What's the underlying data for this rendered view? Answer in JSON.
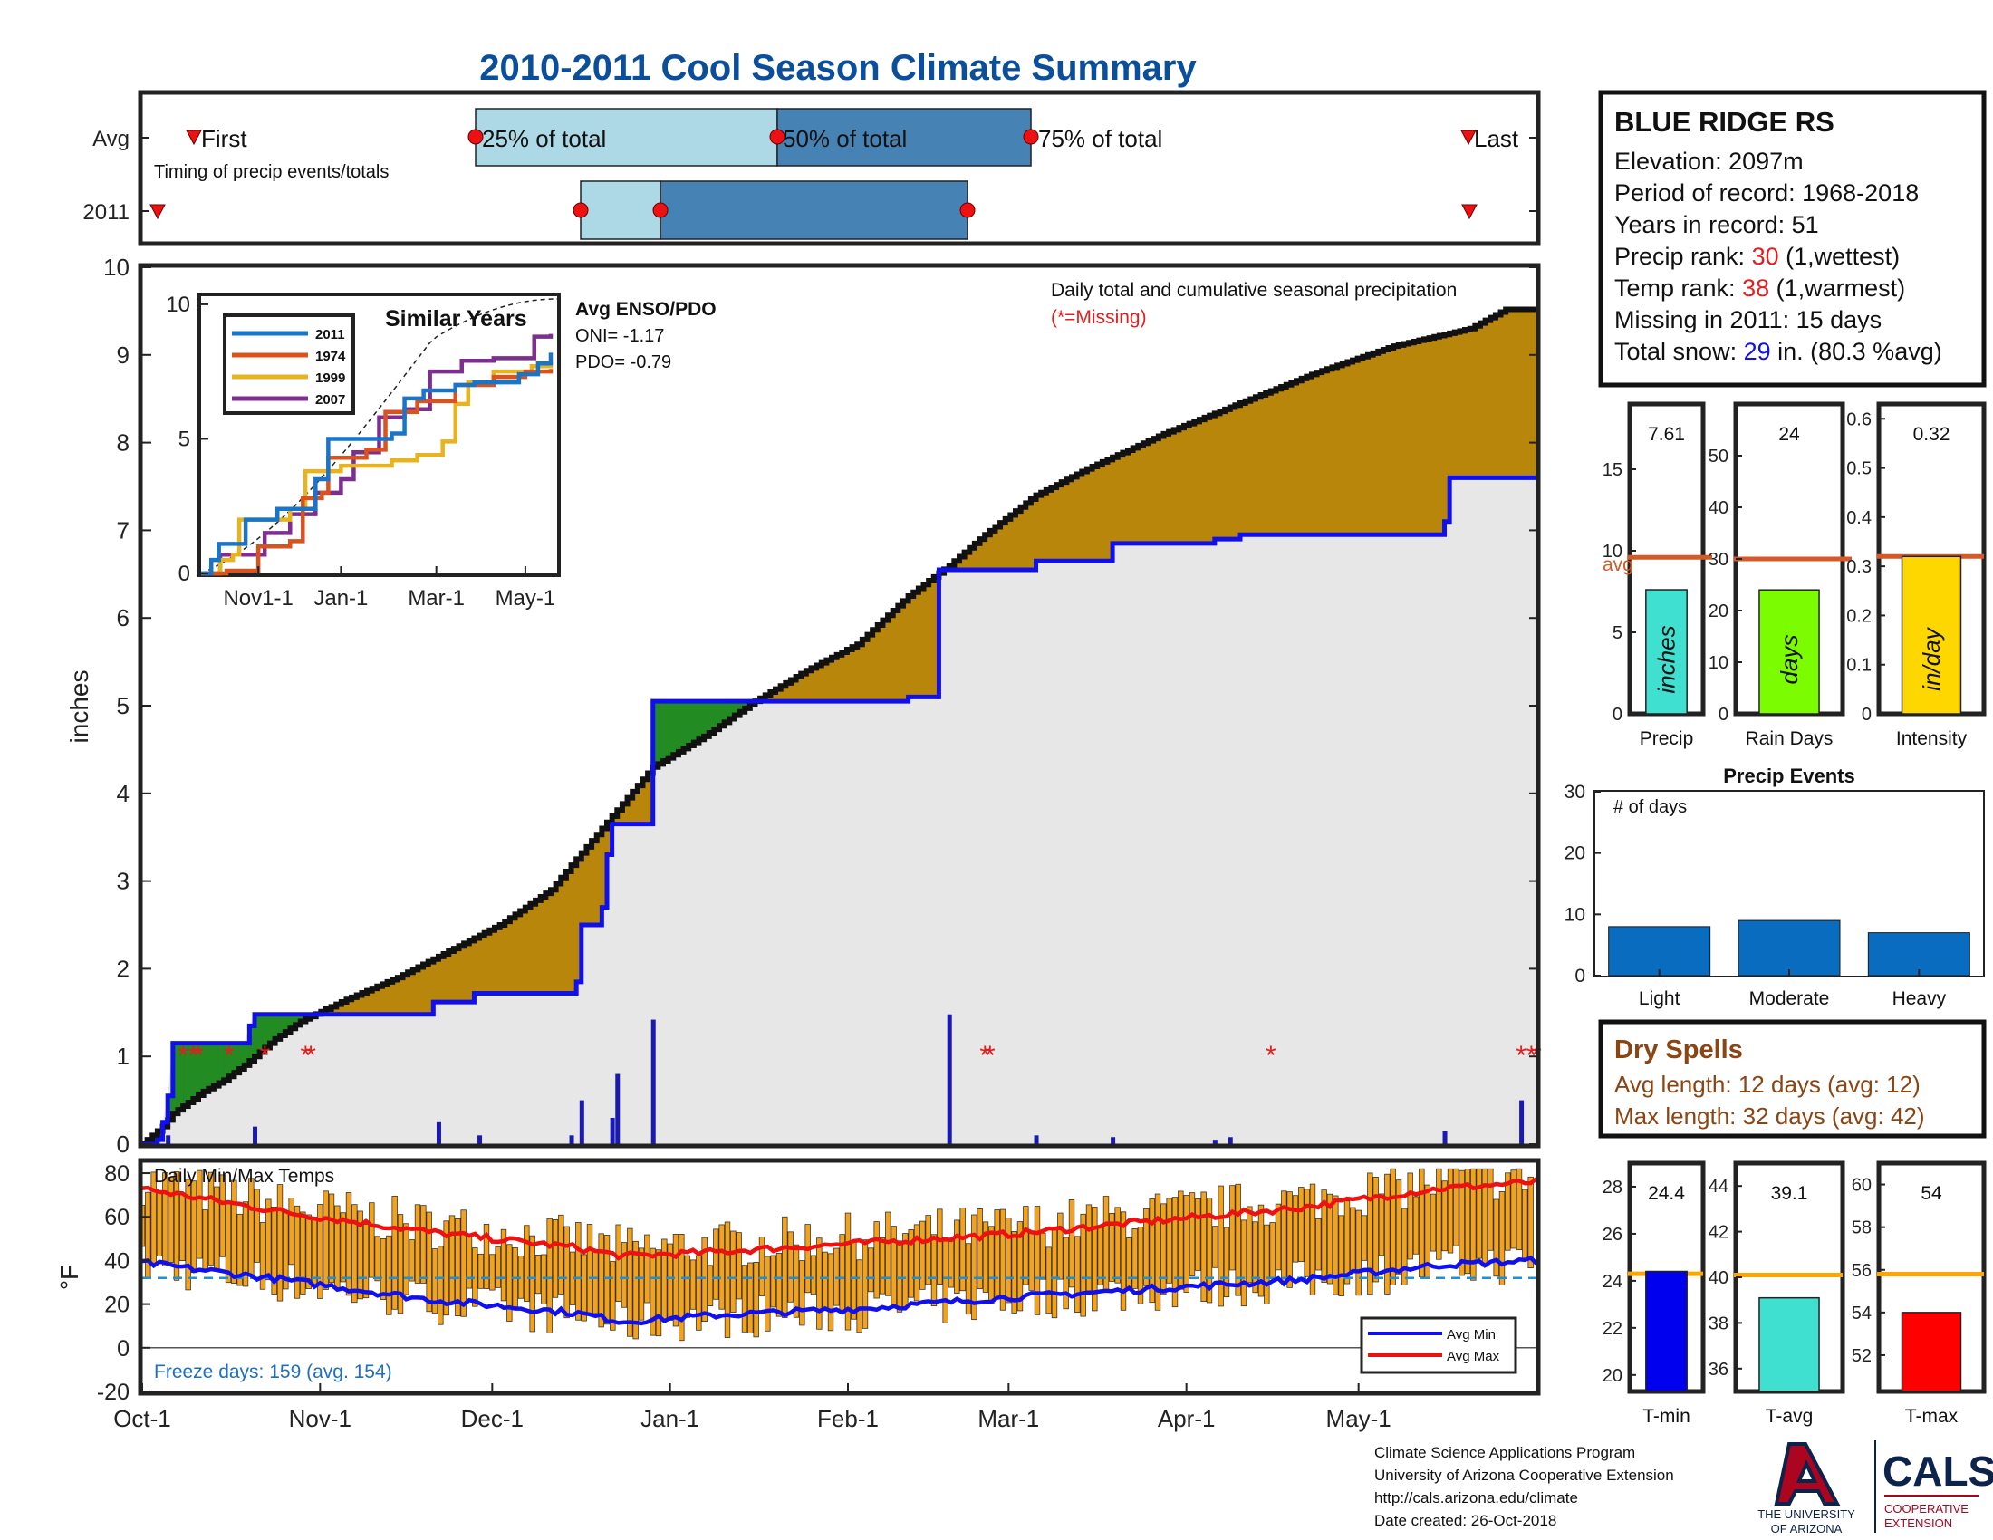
{
  "page": {
    "title": "2010-2011 Cool Season Climate Summary",
    "title_color": "#0b4f9c"
  },
  "timing": {
    "row_labels": [
      "Avg",
      "2011"
    ],
    "first_label": "First",
    "last_label": "Last",
    "p25_label": "25% of total",
    "p50_label": "50% of total",
    "p75_label": "75% of total",
    "caption": "Timing of precip events/totals"
  },
  "station": {
    "name": "BLUE RIDGE RS",
    "elevation": "Elevation: 2097m",
    "period": "Period of record: 1968-2018",
    "years": "Years in record: 51",
    "precip_rank_label": "Precip rank: ",
    "precip_rank_value": "30",
    "precip_rank_suffix": " (1,wettest)",
    "temp_rank_label": "Temp rank: ",
    "temp_rank_value": "38",
    "temp_rank_suffix": " (1,warmest)",
    "missing": "Missing in 2011: 15 days",
    "snow_label": "Total snow: ",
    "snow_value": "29",
    "snow_suffix": " in. (80.3 %avg)"
  },
  "main": {
    "ylabel": "inches",
    "title": "Daily total and cumulative seasonal precipitation",
    "missing_note": "(*=Missing)",
    "yticks": [
      "0",
      "1",
      "2",
      "3",
      "4",
      "5",
      "6",
      "7",
      "8",
      "9",
      "10"
    ],
    "xticks": [
      "Oct-1",
      "Nov-1",
      "Dec-1",
      "Jan-1",
      "Feb-1",
      "Mar-1",
      "Apr-1",
      "May-1"
    ]
  },
  "inset": {
    "title": "Similar Years",
    "yticks": [
      "0",
      "5",
      "10"
    ],
    "xticks": [
      "Nov1-1",
      "Jan-1",
      "Mar-1",
      "May-1"
    ],
    "legend": [
      "2011",
      "1974",
      "1999",
      "2007"
    ],
    "enso_title": "Avg ENSO/PDO",
    "oni": "ONI= -1.17",
    "pdo": "PDO= -0.79"
  },
  "temps": {
    "title": "Daily Min/Max Temps",
    "ylabel": "°F",
    "yticks": [
      "-20",
      "0",
      "20",
      "40",
      "60",
      "80"
    ],
    "freeze": "Freeze days: 159 (avg. 154)",
    "legend_min": "Avg Min",
    "legend_max": "Avg Max"
  },
  "bars_top": {
    "precip": {
      "value_label": "7.61",
      "unit": "inches",
      "xlabel": "Precip",
      "yticks": [
        "0",
        "5",
        "10",
        "15"
      ],
      "avg_label": "avg"
    },
    "raindays": {
      "value_label": "24",
      "unit": "days",
      "xlabel": "Rain Days",
      "yticks": [
        "0",
        "10",
        "20",
        "30",
        "40",
        "50"
      ]
    },
    "intensity": {
      "value_label": "0.32",
      "unit": "in/day",
      "xlabel": "Intensity",
      "yticks": [
        "0",
        "0.1",
        "0.2",
        "0.3",
        "0.4",
        "0.5",
        "0.6"
      ]
    }
  },
  "events": {
    "title": "Precip Events",
    "ylabel": "# of days",
    "yticks": [
      "0",
      "10",
      "20",
      "30"
    ],
    "categories": [
      "Light",
      "Moderate",
      "Heavy"
    ]
  },
  "dry": {
    "title": "Dry Spells",
    "avg": "Avg length: 12 days (avg: 12)",
    "max": "Max length: 32 days (avg: 42)"
  },
  "bars_temp": {
    "tmin": {
      "value_label": "24.4",
      "xlabel": "T-min",
      "yticks": [
        "20",
        "22",
        "24",
        "26",
        "28"
      ]
    },
    "tavg": {
      "value_label": "39.1",
      "xlabel": "T-avg",
      "yticks": [
        "36",
        "38",
        "40",
        "42",
        "44"
      ]
    },
    "tmax": {
      "value_label": "54",
      "xlabel": "T-max",
      "yticks": [
        "52",
        "54",
        "56",
        "58",
        "60"
      ]
    }
  },
  "footer": {
    "line1": "Climate Science Applications Program",
    "line2": "University of Arizona Cooperative Extension",
    "line3": "http://cals.arizona.edu/climate",
    "line4": " Date created: 26-Oct-2018",
    "ua_line1": "THE UNIVERSITY",
    "ua_line2": "OF ARIZONA",
    "cals": "CALS",
    "cals_sub1": "COOPERATIVE",
    "cals_sub2": "EXTENSION"
  },
  "colors": {
    "precip_fill": "#b8860b",
    "deficit_fill": "#228b22",
    "background_fill": "#e8e7e7",
    "avg_line": "#1010ee",
    "bar_daily": "#1a1ab0",
    "rank_red": "#e21f1f",
    "snow_blue": "#1010ee",
    "avg_orange": "#d65a28",
    "brown_text": "#8b4513",
    "light_blue": "#add8e6",
    "steel_blue": "#4682b4",
    "event_blue": "#0a6cbf"
  },
  "chart_data": [
    {
      "type": "area",
      "name": "precip",
      "title": "Daily total and cumulative seasonal precipitation",
      "ylabel": "inches",
      "ylim": [
        0,
        10
      ],
      "x_range": [
        "Oct-1",
        "May-31"
      ],
      "cumulative_2011": [
        [
          0,
          0
        ],
        [
          4,
          0.2
        ],
        [
          6,
          0.35
        ],
        [
          12,
          0.6
        ],
        [
          16,
          0.73
        ],
        [
          20,
          0.9
        ],
        [
          26,
          1.2
        ],
        [
          31,
          1.4
        ],
        [
          40,
          1.65
        ],
        [
          50,
          1.9
        ],
        [
          60,
          2.2
        ],
        [
          70,
          2.5
        ],
        [
          80,
          2.9
        ],
        [
          90,
          3.6
        ],
        [
          100,
          4.3
        ],
        [
          110,
          4.65
        ],
        [
          120,
          5.05
        ],
        [
          130,
          5.4
        ],
        [
          140,
          5.7
        ],
        [
          150,
          6.25
        ],
        [
          158,
          6.6
        ],
        [
          165,
          6.95
        ],
        [
          175,
          7.4
        ],
        [
          185,
          7.7
        ],
        [
          200,
          8.1
        ],
        [
          215,
          8.45
        ],
        [
          230,
          8.8
        ],
        [
          245,
          9.1
        ],
        [
          260,
          9.3
        ],
        [
          267,
          9.52
        ]
      ],
      "average_cumulative": [
        [
          0,
          0
        ],
        [
          3,
          0.05
        ],
        [
          4,
          0.25
        ],
        [
          5,
          0.55
        ],
        [
          6,
          1.15
        ],
        [
          20,
          1.15
        ],
        [
          21,
          1.35
        ],
        [
          22,
          1.48
        ],
        [
          32,
          1.48
        ],
        [
          33,
          1.48
        ],
        [
          56,
          1.48
        ],
        [
          57,
          1.62
        ],
        [
          65,
          1.72
        ],
        [
          85,
          1.85
        ],
        [
          86,
          2.5
        ],
        [
          90,
          2.7
        ],
        [
          91,
          3.3
        ],
        [
          92,
          3.65
        ],
        [
          99,
          3.65
        ],
        [
          100,
          5.05
        ],
        [
          150,
          5.1
        ],
        [
          155,
          5.1
        ],
        [
          156,
          6.55
        ],
        [
          175,
          6.65
        ],
        [
          190,
          6.85
        ],
        [
          210,
          6.9
        ],
        [
          215,
          6.95
        ],
        [
          255,
          7.1
        ],
        [
          256,
          7.6
        ],
        [
          267,
          7.6
        ]
      ],
      "daily_precip": [
        [
          2,
          0.05
        ],
        [
          5,
          0.1
        ],
        [
          22,
          0.2
        ],
        [
          58,
          0.25
        ],
        [
          66,
          0.1
        ],
        [
          84,
          0.1
        ],
        [
          86,
          0.5
        ],
        [
          92,
          0.3
        ],
        [
          93,
          0.8
        ],
        [
          100,
          1.42
        ],
        [
          158,
          1.48
        ],
        [
          175,
          0.1
        ],
        [
          190,
          0.08
        ],
        [
          210,
          0.05
        ],
        [
          213,
          0.08
        ],
        [
          255,
          0.15
        ],
        [
          270,
          0.5
        ]
      ],
      "missing_days": [
        8,
        10,
        11,
        17,
        24,
        32,
        33,
        165,
        166,
        221,
        270,
        272,
        273
      ]
    },
    {
      "type": "line",
      "name": "similar_years",
      "title": "Similar Years",
      "ylim": [
        0,
        10
      ],
      "xticks": [
        "Nov1-1",
        "Jan-1",
        "Mar-1",
        "May-1"
      ],
      "series": [
        {
          "name": "2011",
          "color": "#1a75c8",
          "values": [
            [
              0,
              0
            ],
            [
              8,
              0.5
            ],
            [
              14,
              1.1
            ],
            [
              30,
              1.1
            ],
            [
              35,
              2.0
            ],
            [
              60,
              2.4
            ],
            [
              90,
              3.5
            ],
            [
              100,
              5.0
            ],
            [
              150,
              5.2
            ],
            [
              160,
              6.5
            ],
            [
              175,
              6.8
            ],
            [
              200,
              7.0
            ],
            [
              215,
              7.1
            ],
            [
              250,
              7.4
            ],
            [
              265,
              7.8
            ],
            [
              275,
              8.2
            ]
          ]
        },
        {
          "name": "1974",
          "color": "#d9531e",
          "values": [
            [
              0,
              0
            ],
            [
              20,
              0.1
            ],
            [
              40,
              0.1
            ],
            [
              45,
              1.0
            ],
            [
              70,
              1.2
            ],
            [
              80,
              2.8
            ],
            [
              95,
              3.0
            ],
            [
              100,
              4.3
            ],
            [
              130,
              4.6
            ],
            [
              145,
              6.0
            ],
            [
              170,
              6.4
            ],
            [
              200,
              7.0
            ],
            [
              230,
              7.3
            ],
            [
              255,
              7.5
            ],
            [
              275,
              7.6
            ]
          ]
        },
        {
          "name": "1999",
          "color": "#e6b41f",
          "values": [
            [
              0,
              0
            ],
            [
              15,
              0.5
            ],
            [
              25,
              0.7
            ],
            [
              30,
              2.0
            ],
            [
              70,
              2.4
            ],
            [
              82,
              3.8
            ],
            [
              110,
              4.0
            ],
            [
              130,
              4.0
            ],
            [
              150,
              4.2
            ],
            [
              170,
              4.4
            ],
            [
              190,
              4.9
            ],
            [
              200,
              6.3
            ],
            [
              210,
              7.1
            ],
            [
              230,
              7.5
            ],
            [
              260,
              7.7
            ],
            [
              275,
              7.9
            ]
          ]
        },
        {
          "name": "2007",
          "color": "#7d2e8f",
          "values": [
            [
              0,
              0
            ],
            [
              15,
              0.7
            ],
            [
              30,
              0.7
            ],
            [
              50,
              1.5
            ],
            [
              70,
              2.2
            ],
            [
              90,
              3.0
            ],
            [
              110,
              3.5
            ],
            [
              120,
              4.5
            ],
            [
              140,
              5.8
            ],
            [
              160,
              6.1
            ],
            [
              180,
              7.5
            ],
            [
              205,
              7.9
            ],
            [
              230,
              8.0
            ],
            [
              262,
              8.8
            ],
            [
              275,
              8.9
            ]
          ]
        }
      ],
      "average_curve": true
    },
    {
      "type": "line",
      "name": "daily_temps",
      "title": "Daily Min/Max Temps",
      "ylabel": "°F",
      "ylim": [
        -20,
        85
      ],
      "freeze_line": 32,
      "avg_max": [
        [
          0,
          73
        ],
        [
          30,
          62
        ],
        [
          60,
          53
        ],
        [
          90,
          46
        ],
        [
          100,
          42
        ],
        [
          120,
          44
        ],
        [
          150,
          48
        ],
        [
          180,
          52
        ],
        [
          210,
          58
        ],
        [
          240,
          64
        ],
        [
          270,
          73
        ],
        [
          290,
          76
        ]
      ],
      "avg_min": [
        [
          0,
          39
        ],
        [
          30,
          31
        ],
        [
          60,
          22
        ],
        [
          90,
          16
        ],
        [
          100,
          12
        ],
        [
          120,
          15
        ],
        [
          150,
          18
        ],
        [
          180,
          23
        ],
        [
          210,
          27
        ],
        [
          240,
          31
        ],
        [
          270,
          38
        ],
        [
          290,
          40
        ]
      ]
    },
    {
      "type": "bar",
      "name": "precip_total",
      "categories": [
        "Precip"
      ],
      "values": [
        7.61
      ],
      "average": 9.6,
      "ylim": [
        0,
        19
      ]
    },
    {
      "type": "bar",
      "name": "rain_days",
      "categories": [
        "Rain Days"
      ],
      "values": [
        24
      ],
      "average": 30,
      "ylim": [
        0,
        60
      ]
    },
    {
      "type": "bar",
      "name": "intensity",
      "categories": [
        "Intensity"
      ],
      "values": [
        0.32
      ],
      "average": 0.32,
      "ylim": [
        0,
        0.63
      ]
    },
    {
      "type": "bar",
      "name": "precip_events",
      "title": "Precip Events",
      "ylabel": "# of days",
      "categories": [
        "Light",
        "Moderate",
        "Heavy"
      ],
      "values": [
        8,
        9,
        7
      ],
      "ylim": [
        0,
        30
      ]
    },
    {
      "type": "bar",
      "name": "tmin",
      "categories": [
        "T-min"
      ],
      "values": [
        24.4
      ],
      "average": 24.3,
      "ylim": [
        19.3,
        29
      ]
    },
    {
      "type": "bar",
      "name": "tavg",
      "categories": [
        "T-avg"
      ],
      "values": [
        39.1
      ],
      "average": 40.1,
      "ylim": [
        35,
        45
      ]
    },
    {
      "type": "bar",
      "name": "tmax",
      "categories": [
        "T-max"
      ],
      "values": [
        54
      ],
      "average": 55.8,
      "ylim": [
        50.3,
        61
      ]
    }
  ]
}
